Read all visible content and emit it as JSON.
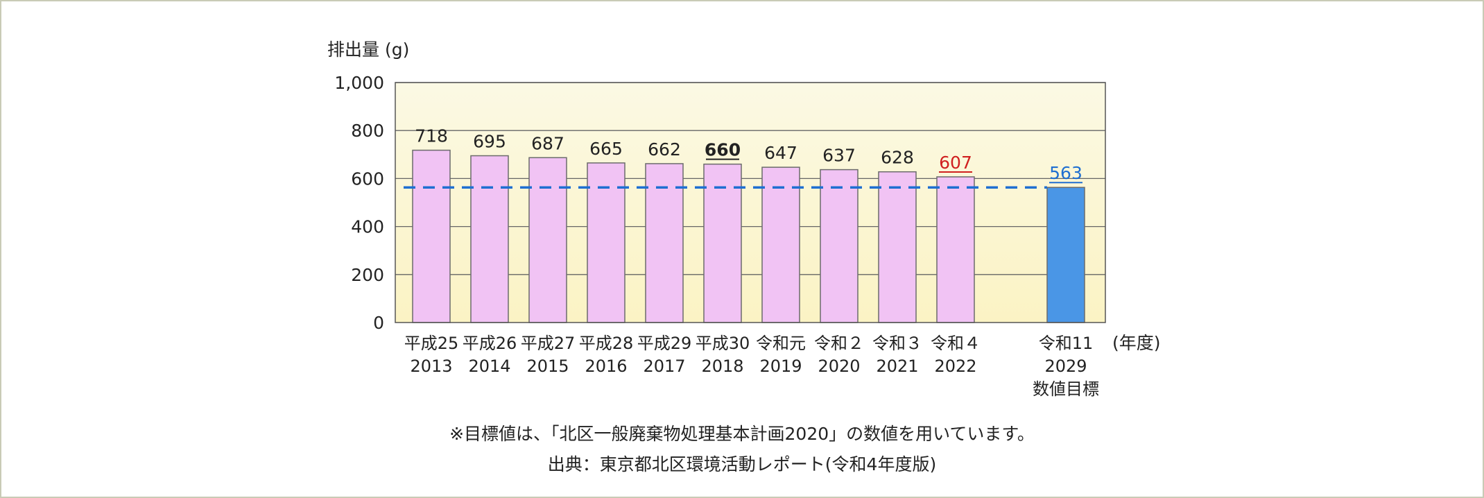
{
  "chart_data": {
    "type": "bar",
    "ylabel": "排出量 (g)",
    "xlabel": "(年度)",
    "ylim": [
      0,
      1000
    ],
    "yticks": [
      "0",
      "200",
      "400",
      "600",
      "800",
      "1,000"
    ],
    "ytick_values": [
      0,
      200,
      400,
      600,
      800,
      1000
    ],
    "grid": true,
    "categories": [
      [
        "平成25",
        "2013"
      ],
      [
        "平成26",
        "2014"
      ],
      [
        "平成27",
        "2015"
      ],
      [
        "平成28",
        "2016"
      ],
      [
        "平成29",
        "2017"
      ],
      [
        "平成30",
        "2018"
      ],
      [
        "令和元",
        "2019"
      ],
      [
        "令和２",
        "2020"
      ],
      [
        "令和３",
        "2021"
      ],
      [
        "令和４",
        "2022"
      ],
      [
        "令和11",
        "2029",
        "数値目標"
      ]
    ],
    "values": [
      718,
      695,
      687,
      665,
      662,
      660,
      647,
      637,
      628,
      607,
      563
    ],
    "value_labels": [
      "718",
      "695",
      "687",
      "665",
      "662",
      "660",
      "647",
      "637",
      "628",
      "607",
      "563"
    ],
    "label_styles": [
      "normal",
      "normal",
      "normal",
      "normal",
      "normal",
      "underline-black",
      "normal",
      "normal",
      "normal",
      "underline-red",
      "underline-blue"
    ],
    "target_line": 563,
    "colors": {
      "bar": "#f1c3f4",
      "target_bar": "#4a96e6",
      "target_line": "#1f6fd1",
      "highlight_red": "#d01f1f",
      "highlight_blue": "#1f6fd1",
      "plot_bg_top": "#fbf8df",
      "plot_bg_bottom": "#fbf4c6"
    }
  },
  "footnote": "※目標値は、「北区一般廃棄物処理基本計画2020」の数値を用いています。",
  "source": "出典：東京都北区環境活動レポート(令和4年度版)"
}
